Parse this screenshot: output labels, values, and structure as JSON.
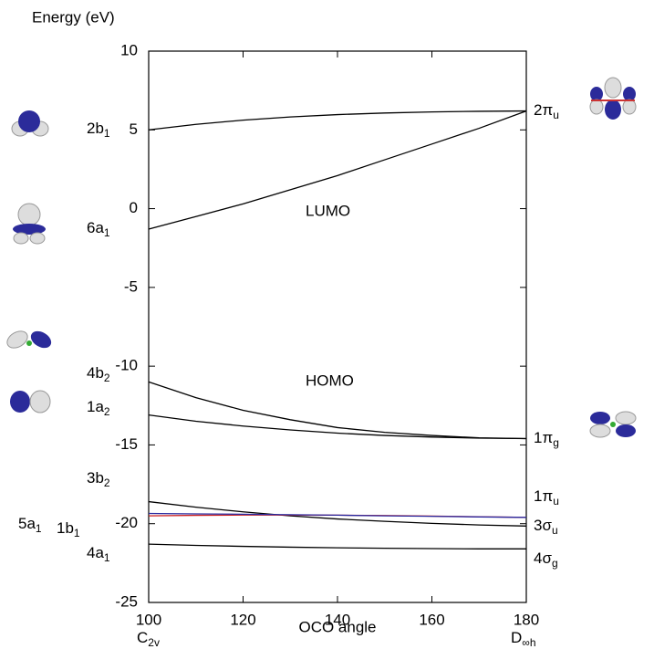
{
  "chart_data": {
    "type": "line",
    "y_label": "Energy (eV)",
    "x_label": "OCO angle",
    "x_end_labels": [
      {
        "text": "C",
        "sub": "2v"
      },
      {
        "text": "D",
        "sub": "∞h"
      }
    ],
    "annotations": [
      "LUMO",
      "HOMO"
    ],
    "x": [
      100,
      110,
      120,
      130,
      140,
      150,
      160,
      170,
      180
    ],
    "xlim": [
      100,
      180
    ],
    "xticks": [
      100,
      120,
      140,
      160,
      180
    ],
    "ylim": [
      -25,
      10
    ],
    "yticks": [
      10,
      5,
      0,
      -5,
      -10,
      -15,
      -20,
      -25
    ],
    "series": [
      {
        "label": {
          "text": "2b",
          "sub": "1"
        },
        "color": "#000000",
        "values": [
          5.0,
          5.35,
          5.62,
          5.82,
          5.97,
          6.07,
          6.14,
          6.18,
          6.2
        ]
      },
      {
        "label": {
          "text": "6a",
          "sub": "1"
        },
        "color": "#000000",
        "values": [
          -1.3,
          -0.5,
          0.3,
          1.2,
          2.1,
          3.1,
          4.1,
          5.1,
          6.2
        ]
      },
      {
        "label": {
          "text": "4b",
          "sub": "2"
        },
        "color": "#000000",
        "values": [
          -11.0,
          -12.0,
          -12.8,
          -13.4,
          -13.9,
          -14.2,
          -14.4,
          -14.55,
          -14.6
        ]
      },
      {
        "label": {
          "text": "1a",
          "sub": "2"
        },
        "color": "#000000",
        "values": [
          -13.1,
          -13.5,
          -13.8,
          -14.05,
          -14.25,
          -14.4,
          -14.5,
          -14.57,
          -14.6
        ]
      },
      {
        "label": {
          "text": "3b",
          "sub": "2"
        },
        "color": "#000000",
        "values": [
          -18.6,
          -18.95,
          -19.25,
          -19.5,
          -19.7,
          -19.85,
          -19.98,
          -20.08,
          -20.15
        ]
      },
      {
        "label": {
          "text": "5a",
          "sub": "1"
        },
        "color": "#cc2222",
        "values": [
          -19.5,
          -19.47,
          -19.45,
          -19.45,
          -19.46,
          -19.48,
          -19.52,
          -19.56,
          -19.6
        ]
      },
      {
        "label": {
          "text": "1b",
          "sub": "1"
        },
        "color": "#2a2aa0",
        "values": [
          -19.35,
          -19.38,
          -19.4,
          -19.43,
          -19.46,
          -19.5,
          -19.53,
          -19.57,
          -19.6
        ]
      },
      {
        "label": {
          "text": "4a",
          "sub": "1"
        },
        "color": "#000000",
        "values": [
          -21.3,
          -21.38,
          -21.44,
          -21.49,
          -21.53,
          -21.56,
          -21.58,
          -21.6,
          -21.6
        ]
      }
    ],
    "right_labels": [
      {
        "text": "2π",
        "sub": "u"
      },
      {
        "text": "1π",
        "sub": "g"
      },
      {
        "text": "1π",
        "sub": "u"
      },
      {
        "text": "3σ",
        "sub": "u"
      },
      {
        "text": "4σ",
        "sub": "g"
      }
    ]
  }
}
